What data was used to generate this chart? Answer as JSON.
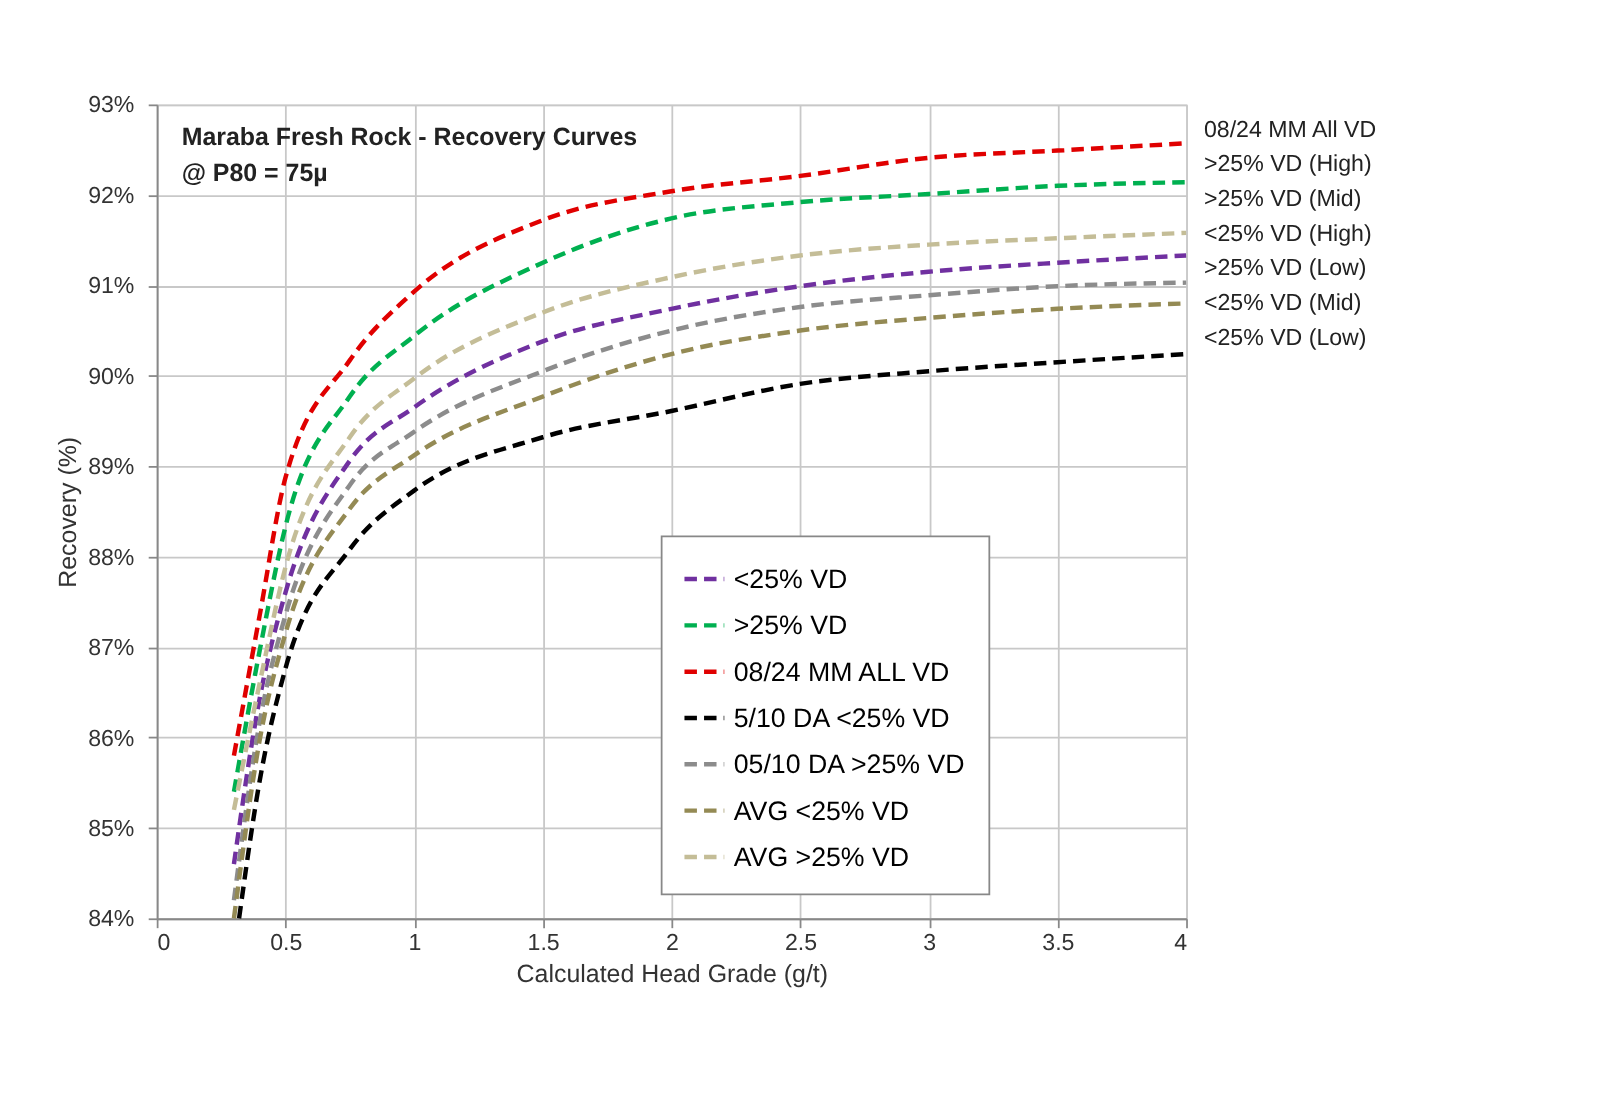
{
  "chart_data": {
    "type": "line",
    "title": "Maraba Fresh Rock - Recovery Curves",
    "subtitle": "@ P80 = 75µ",
    "xlabel": "Calculated Head Grade (g/t)",
    "ylabel": "Recovery (%)",
    "xlim": [
      0,
      4
    ],
    "xticks": [
      0,
      0.5,
      1,
      1.5,
      2,
      2.5,
      3,
      3.5,
      4
    ],
    "ylim": [
      84,
      93
    ],
    "yticks": [
      {
        "value": 84,
        "label": "84%"
      },
      {
        "value": 85,
        "label": "85%"
      },
      {
        "value": 86,
        "label": "86%"
      },
      {
        "value": 87,
        "label": "87%"
      },
      {
        "value": 88,
        "label": "88%"
      },
      {
        "value": 89,
        "label": "89%"
      },
      {
        "value": 90,
        "label": "90%"
      },
      {
        "value": 91,
        "label": "91%"
      },
      {
        "value": 92,
        "label": "92%"
      },
      {
        "value": 93,
        "label": "93%"
      }
    ],
    "grid": true,
    "legend": "bottom right",
    "marker": "none",
    "line_style": "dashed",
    "x": [
      0.3,
      0.4,
      0.5,
      0.75,
      1,
      1.5,
      2,
      2.5,
      3,
      3.5,
      4
    ],
    "series": [
      {
        "name": "<25% VD",
        "color": "#7030a0",
        "values": [
          84.6,
          86.43,
          87.6,
          89.06,
          89.65,
          90.38,
          90.74,
          90.99,
          91.15,
          91.25,
          91.33
        ]
      },
      {
        "name": ">25% VD",
        "color": "#00b050",
        "values": [
          85.4,
          86.96,
          88.33,
          89.77,
          90.44,
          91.25,
          91.74,
          91.92,
          92.01,
          92.1,
          92.14
        ]
      },
      {
        "name": "08/24 MM ALL VD",
        "color": "#e00000",
        "values": [
          85.8,
          87.35,
          88.87,
          90.17,
          90.93,
          91.72,
          92.04,
          92.21,
          92.41,
          92.49,
          92.57
        ]
      },
      {
        "name": "5/10 DA <25% VD",
        "color": "#000000",
        "x": [
          0.32,
          0.4,
          0.5,
          0.75,
          1,
          1.5,
          2,
          2.5,
          3,
          3.5,
          4
        ],
        "values": [
          84.0,
          85.52,
          86.76,
          88.08,
          88.73,
          89.32,
          89.61,
          89.91,
          90.05,
          90.15,
          90.24
        ]
      },
      {
        "name": "05/10 DA >25% VD",
        "color": "#8c8c8c",
        "values": [
          84.2,
          86.17,
          87.35,
          88.79,
          89.38,
          90.05,
          90.5,
          90.76,
          90.89,
          90.99,
          91.03
        ]
      },
      {
        "name": "AVG <25% VD",
        "color": "#948a54",
        "values": [
          84.0,
          85.97,
          87.15,
          88.53,
          89.12,
          89.77,
          90.24,
          90.5,
          90.64,
          90.74,
          90.8
        ]
      },
      {
        "name": "AVG >25% VD",
        "color": "#c4bd97",
        "values": [
          85.2,
          86.6,
          87.88,
          89.32,
          89.97,
          90.7,
          91.09,
          91.33,
          91.45,
          91.52,
          91.58
        ]
      }
    ],
    "annotations": [
      "08/24 MM All VD",
      ">25% VD (High)",
      ">25% VD (Mid)",
      "<25% VD (High)",
      ">25% VD (Low)",
      "<25% VD (Mid)",
      "<25% VD (Low)"
    ]
  }
}
